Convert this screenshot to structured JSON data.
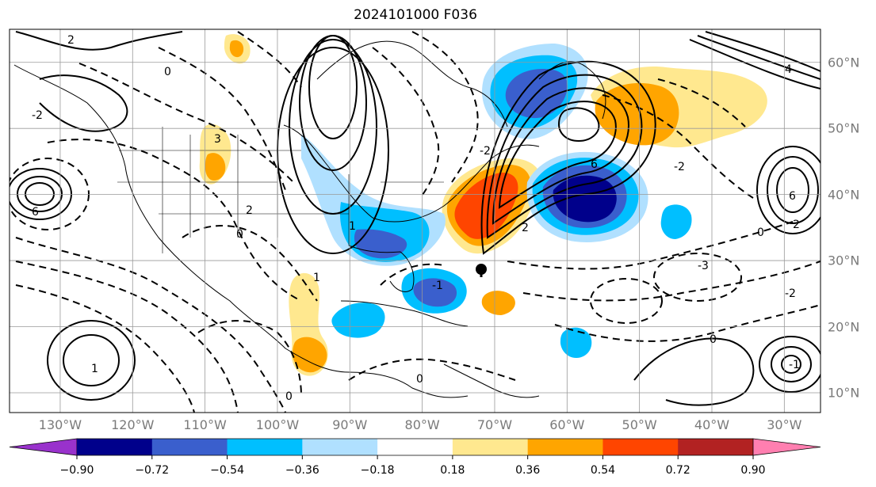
{
  "title": "2024101000 F036",
  "longitude_labels": [
    "130°W",
    "120°W",
    "110°W",
    "100°W",
    "90°W",
    "80°W",
    "70°W",
    "60°W",
    "50°W",
    "40°W",
    "30°W"
  ],
  "latitude_labels": [
    "60°N",
    "50°N",
    "40°N",
    "30°N",
    "20°N",
    "10°N"
  ],
  "contour_labels": [
    "2",
    "0",
    "6",
    "3",
    "-2",
    "-1",
    "1",
    "-3",
    "4"
  ],
  "colorbar": {
    "ticks": [
      "−0.90",
      "−0.72",
      "−0.54",
      "−0.36",
      "−0.18",
      "0.18",
      "0.36",
      "0.54",
      "0.72",
      "0.90"
    ],
    "colors": [
      "#9932cc",
      "#00008b",
      "#3a5fcd",
      "#00bfff",
      "#b0e0ff",
      "#ffffff",
      "#ffe88f",
      "#ffa500",
      "#ff4500",
      "#b22222",
      "#ff7fb0"
    ],
    "extend": "both"
  },
  "map": {
    "projection": "lat-lon",
    "lon_range": [
      "137°W",
      "25°W"
    ],
    "lat_range": [
      "7°N",
      "65°N"
    ],
    "gridlines": true,
    "marker": {
      "name": "storm-center",
      "lon": -69.5,
      "lat": 29.5
    }
  }
}
